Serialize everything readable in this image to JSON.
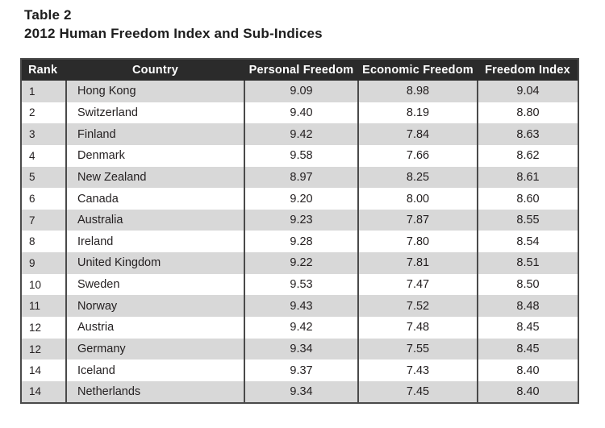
{
  "page": {
    "title": "Table 2",
    "subtitle": "2012 Human Freedom Index and Sub-Indices"
  },
  "colors": {
    "header_bg": "#2b2b2b",
    "header_text": "#ffffff",
    "row_stripe": "#d8d8d8",
    "row_plain": "#ffffff",
    "border": "#4a4a4a",
    "body_text": "#231f20"
  },
  "table": {
    "columns": [
      {
        "key": "rank",
        "label": "Rank"
      },
      {
        "key": "country",
        "label": "Country"
      },
      {
        "key": "personal_freedom",
        "label": "Personal Freedom"
      },
      {
        "key": "economic_freedom",
        "label": "Economic Freedom"
      },
      {
        "key": "freedom_index",
        "label": "Freedom Index"
      }
    ],
    "rows": [
      {
        "rank": "1",
        "country": "Hong Kong",
        "personal_freedom": "9.09",
        "economic_freedom": "8.98",
        "freedom_index": "9.04"
      },
      {
        "rank": "2",
        "country": "Switzerland",
        "personal_freedom": "9.40",
        "economic_freedom": "8.19",
        "freedom_index": "8.80"
      },
      {
        "rank": "3",
        "country": "Finland",
        "personal_freedom": "9.42",
        "economic_freedom": "7.84",
        "freedom_index": "8.63"
      },
      {
        "rank": "4",
        "country": "Denmark",
        "personal_freedom": "9.58",
        "economic_freedom": "7.66",
        "freedom_index": "8.62"
      },
      {
        "rank": "5",
        "country": "New Zealand",
        "personal_freedom": "8.97",
        "economic_freedom": "8.25",
        "freedom_index": "8.61"
      },
      {
        "rank": "6",
        "country": "Canada",
        "personal_freedom": "9.20",
        "economic_freedom": "8.00",
        "freedom_index": "8.60"
      },
      {
        "rank": "7",
        "country": "Australia",
        "personal_freedom": "9.23",
        "economic_freedom": "7.87",
        "freedom_index": "8.55"
      },
      {
        "rank": "8",
        "country": "Ireland",
        "personal_freedom": "9.28",
        "economic_freedom": "7.80",
        "freedom_index": "8.54"
      },
      {
        "rank": "9",
        "country": "United Kingdom",
        "personal_freedom": "9.22",
        "economic_freedom": "7.81",
        "freedom_index": "8.51"
      },
      {
        "rank": "10",
        "country": "Sweden",
        "personal_freedom": "9.53",
        "economic_freedom": "7.47",
        "freedom_index": "8.50"
      },
      {
        "rank": "11",
        "country": "Norway",
        "personal_freedom": "9.43",
        "economic_freedom": "7.52",
        "freedom_index": "8.48"
      },
      {
        "rank": "12",
        "country": "Austria",
        "personal_freedom": "9.42",
        "economic_freedom": "7.48",
        "freedom_index": "8.45"
      },
      {
        "rank": "12",
        "country": "Germany",
        "personal_freedom": "9.34",
        "economic_freedom": "7.55",
        "freedom_index": "8.45"
      },
      {
        "rank": "14",
        "country": "Iceland",
        "personal_freedom": "9.37",
        "economic_freedom": "7.43",
        "freedom_index": "8.40"
      },
      {
        "rank": "14",
        "country": "Netherlands",
        "personal_freedom": "9.34",
        "economic_freedom": "7.45",
        "freedom_index": "8.40"
      }
    ]
  }
}
